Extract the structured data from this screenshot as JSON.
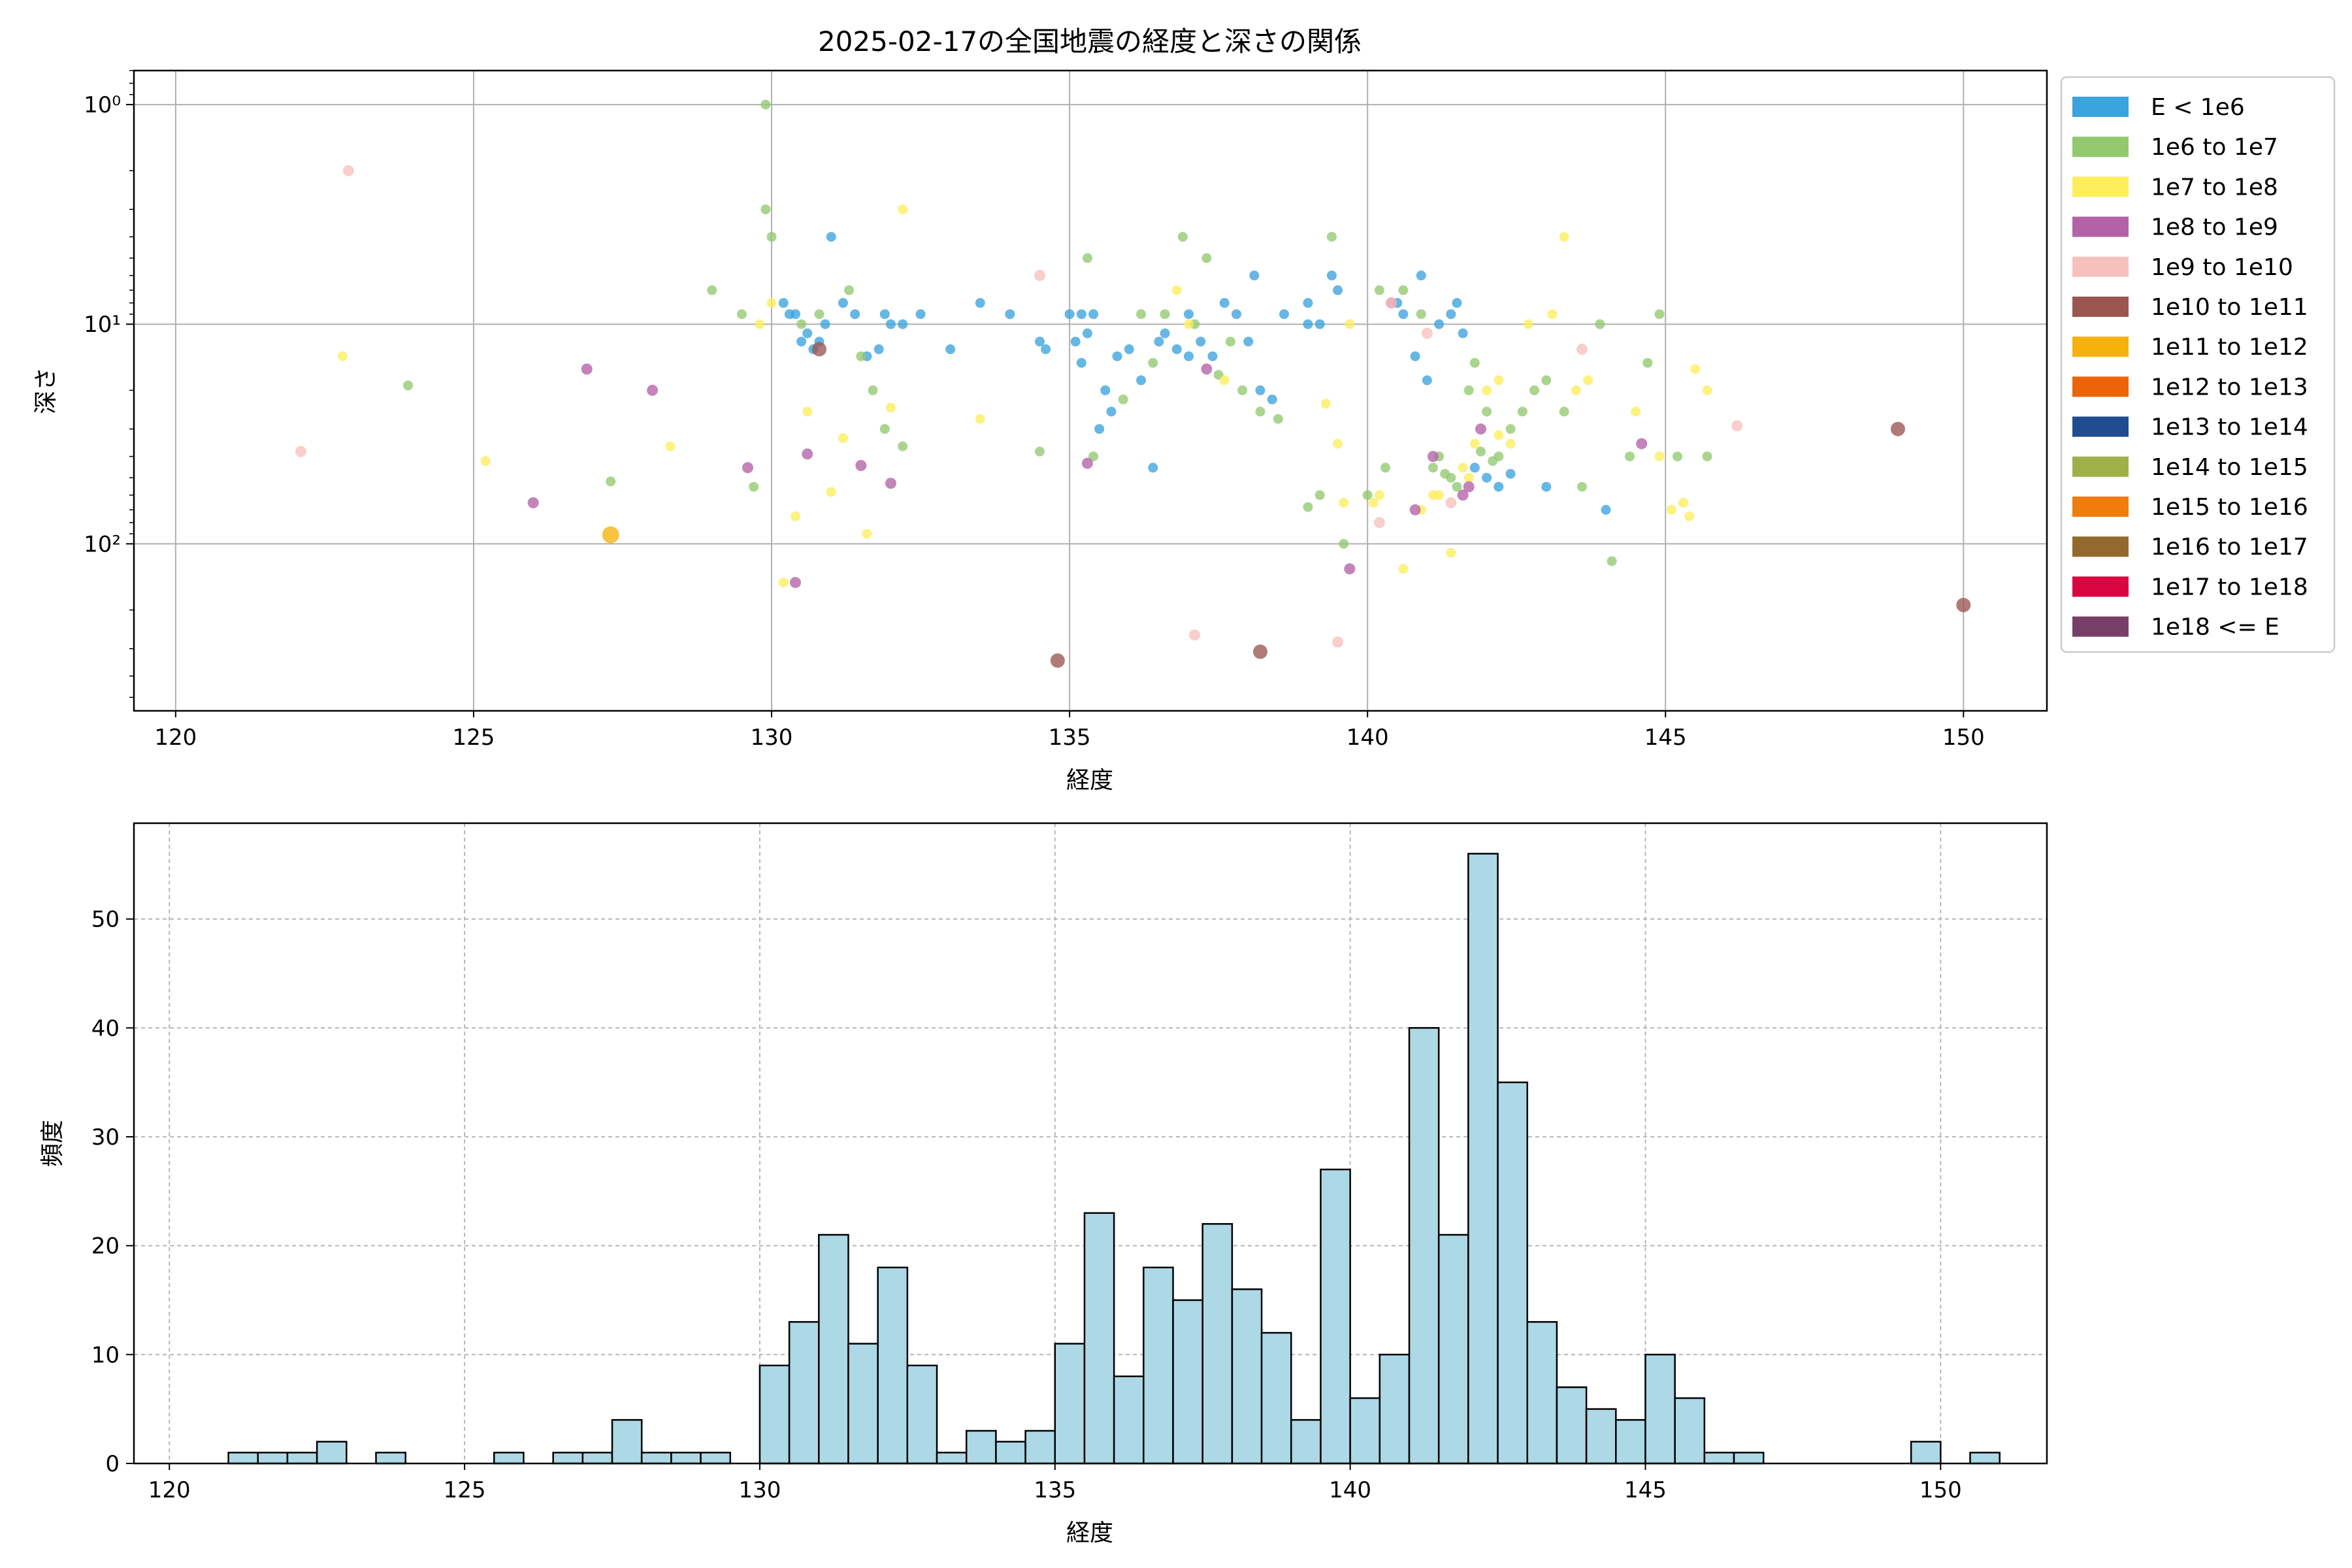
{
  "chart_data": [
    {
      "type": "scatter",
      "title": "2025-02-17の全国地震の経度と深さの関係",
      "xlabel": "経度",
      "ylabel": "深さ",
      "xlim": [
        119.3,
        151.4
      ],
      "ylim": [
        576,
        0.7
      ],
      "y_scale": "log-inverted",
      "x_ticks": [
        120,
        125,
        130,
        135,
        140,
        145,
        150
      ],
      "y_ticks": [
        {
          "value": 1,
          "label": "10⁰"
        },
        {
          "value": 10,
          "label": "10¹"
        },
        {
          "value": 100,
          "label": "10²"
        }
      ],
      "grid": true,
      "legend_position": "outside-right",
      "legend": [
        {
          "label": "E < 1e6",
          "color": "#3ba3dd"
        },
        {
          "label": "1e6 to 1e7",
          "color": "#92c96e"
        },
        {
          "label": "1e7 to 1e8",
          "color": "#fdee5c"
        },
        {
          "label": "1e8 to 1e9",
          "color": "#b462a8"
        },
        {
          "label": "1e9 to 1e10",
          "color": "#f6c1bd"
        },
        {
          "label": "1e10 to 1e11",
          "color": "#9a564f"
        },
        {
          "label": "1e11 to 1e12",
          "color": "#f5b20b"
        },
        {
          "label": "1e12 to 1e13",
          "color": "#ec6408"
        },
        {
          "label": "1e13 to 1e14",
          "color": "#1f4d90"
        },
        {
          "label": "1e14 to 1e15",
          "color": "#9fb04b"
        },
        {
          "label": "1e15 to 1e16",
          "color": "#ef7d0c"
        },
        {
          "label": "1e16 to 1e17",
          "color": "#936a2b"
        },
        {
          "label": "1e17 to 1e18",
          "color": "#d90541"
        },
        {
          "label": "1e18 <= E",
          "color": "#773e6a"
        }
      ],
      "series": [
        {
          "name": "E < 1e6",
          "points": [
            [
              130.2,
              8
            ],
            [
              130.4,
              9
            ],
            [
              130.5,
              12
            ],
            [
              130.6,
              11
            ],
            [
              130.7,
              13
            ],
            [
              130.8,
              12
            ],
            [
              130.9,
              10
            ],
            [
              131.0,
              4
            ],
            [
              131.2,
              8
            ],
            [
              131.4,
              9
            ],
            [
              131.6,
              14
            ],
            [
              131.8,
              13
            ],
            [
              132.0,
              10
            ],
            [
              132.5,
              9
            ],
            [
              133.0,
              13
            ],
            [
              133.5,
              8
            ],
            [
              134.0,
              9
            ],
            [
              134.5,
              12
            ],
            [
              134.6,
              13
            ],
            [
              135.0,
              9
            ],
            [
              135.1,
              12
            ],
            [
              135.2,
              15
            ],
            [
              135.3,
              11
            ],
            [
              135.4,
              9
            ],
            [
              135.5,
              30
            ],
            [
              135.6,
              20
            ],
            [
              135.7,
              25
            ],
            [
              135.8,
              14
            ],
            [
              136.0,
              13
            ],
            [
              136.2,
              18
            ],
            [
              136.4,
              45
            ],
            [
              136.5,
              12
            ],
            [
              136.6,
              11
            ],
            [
              136.8,
              13
            ],
            [
              137.0,
              9
            ],
            [
              137.2,
              12
            ],
            [
              137.4,
              14
            ],
            [
              137.6,
              8
            ],
            [
              137.8,
              9
            ],
            [
              138.0,
              12
            ],
            [
              138.2,
              20
            ],
            [
              138.4,
              22
            ],
            [
              138.6,
              9
            ],
            [
              139.0,
              8
            ],
            [
              139.2,
              10
            ],
            [
              139.4,
              6
            ],
            [
              139.5,
              7
            ],
            [
              140.5,
              8
            ],
            [
              140.6,
              9
            ],
            [
              140.8,
              14
            ],
            [
              141.0,
              18
            ],
            [
              141.2,
              10
            ],
            [
              141.4,
              9
            ],
            [
              141.6,
              11
            ],
            [
              141.8,
              45
            ],
            [
              142.0,
              50
            ],
            [
              142.2,
              55
            ],
            [
              142.4,
              48
            ],
            [
              143.0,
              55
            ],
            [
              144.0,
              70
            ],
            [
              132.2,
              10
            ],
            [
              131.9,
              9
            ],
            [
              130.3,
              9
            ],
            [
              135.2,
              9
            ],
            [
              137.0,
              14
            ],
            [
              138.1,
              6
            ],
            [
              140.9,
              6
            ],
            [
              141.5,
              8
            ],
            [
              139.0,
              10
            ]
          ]
        },
        {
          "name": "1e6 to 1e7",
          "points": [
            [
              123.9,
              19
            ],
            [
              127.3,
              52
            ],
            [
              129.0,
              7
            ],
            [
              129.5,
              9
            ],
            [
              129.9,
              1
            ],
            [
              129.9,
              3
            ],
            [
              130.0,
              4
            ],
            [
              130.5,
              10
            ],
            [
              130.8,
              9
            ],
            [
              131.3,
              7
            ],
            [
              131.5,
              14
            ],
            [
              131.7,
              20
            ],
            [
              131.9,
              30
            ],
            [
              132.2,
              36
            ],
            [
              134.5,
              38
            ],
            [
              135.3,
              5
            ],
            [
              135.4,
              40
            ],
            [
              135.9,
              22
            ],
            [
              136.2,
              9
            ],
            [
              136.4,
              15
            ],
            [
              136.6,
              9
            ],
            [
              136.9,
              4
            ],
            [
              137.1,
              10
            ],
            [
              137.3,
              5
            ],
            [
              137.5,
              17
            ],
            [
              137.7,
              12
            ],
            [
              137.9,
              20
            ],
            [
              138.2,
              25
            ],
            [
              138.5,
              27
            ],
            [
              139.0,
              68
            ],
            [
              139.2,
              60
            ],
            [
              139.4,
              4
            ],
            [
              139.6,
              100
            ],
            [
              140.0,
              60
            ],
            [
              140.3,
              45
            ],
            [
              140.6,
              7
            ],
            [
              140.9,
              9
            ],
            [
              141.2,
              40
            ],
            [
              141.4,
              50
            ],
            [
              141.5,
              55
            ],
            [
              141.7,
              20
            ],
            [
              141.8,
              15
            ],
            [
              142.0,
              25
            ],
            [
              142.2,
              40
            ],
            [
              142.4,
              30
            ],
            [
              142.6,
              25
            ],
            [
              142.8,
              20
            ],
            [
              143.0,
              18
            ],
            [
              143.3,
              25
            ],
            [
              143.6,
              55
            ],
            [
              143.9,
              10
            ],
            [
              144.1,
              120
            ],
            [
              144.4,
              40
            ],
            [
              144.7,
              15
            ],
            [
              144.9,
              9
            ],
            [
              145.2,
              40
            ],
            [
              145.7,
              40
            ],
            [
              141.1,
              45
            ],
            [
              141.3,
              48
            ],
            [
              141.9,
              38
            ],
            [
              142.1,
              42
            ],
            [
              140.2,
              7
            ],
            [
              129.7,
              55
            ]
          ]
        },
        {
          "name": "1e7 to 1e8",
          "points": [
            [
              122.8,
              14
            ],
            [
              125.2,
              42
            ],
            [
              128.3,
              36
            ],
            [
              129.8,
              10
            ],
            [
              130.0,
              8
            ],
            [
              130.2,
              150
            ],
            [
              130.4,
              75
            ],
            [
              130.6,
              25
            ],
            [
              131.0,
              58
            ],
            [
              131.2,
              33
            ],
            [
              131.6,
              90
            ],
            [
              132.0,
              24
            ],
            [
              132.2,
              3
            ],
            [
              133.5,
              27
            ],
            [
              136.8,
              7
            ],
            [
              137.0,
              10
            ],
            [
              137.6,
              18
            ],
            [
              139.3,
              23
            ],
            [
              139.5,
              35
            ],
            [
              139.6,
              65
            ],
            [
              140.2,
              60
            ],
            [
              140.6,
              130
            ],
            [
              140.9,
              70
            ],
            [
              141.2,
              60
            ],
            [
              141.4,
              110
            ],
            [
              141.6,
              45
            ],
            [
              141.8,
              35
            ],
            [
              142.0,
              20
            ],
            [
              142.2,
              18
            ],
            [
              142.4,
              35
            ],
            [
              142.7,
              10
            ],
            [
              143.1,
              9
            ],
            [
              143.3,
              4
            ],
            [
              143.5,
              20
            ],
            [
              143.7,
              18
            ],
            [
              144.5,
              25
            ],
            [
              144.9,
              40
            ],
            [
              145.1,
              70
            ],
            [
              145.3,
              65
            ],
            [
              145.4,
              75
            ],
            [
              145.5,
              16
            ],
            [
              145.7,
              20
            ],
            [
              139.7,
              10
            ],
            [
              141.1,
              60
            ],
            [
              141.7,
              50
            ],
            [
              140.1,
              65
            ],
            [
              142.2,
              32
            ]
          ]
        },
        {
          "name": "1e8 to 1e9",
          "points": [
            [
              126.0,
              65
            ],
            [
              126.9,
              16
            ],
            [
              128.0,
              20
            ],
            [
              129.6,
              45
            ],
            [
              130.4,
              150
            ],
            [
              130.6,
              39
            ],
            [
              131.5,
              44
            ],
            [
              132.0,
              53
            ],
            [
              135.3,
              43
            ],
            [
              137.3,
              16
            ],
            [
              140.4,
              8
            ],
            [
              140.8,
              70
            ],
            [
              141.1,
              40
            ],
            [
              141.7,
              55
            ],
            [
              141.9,
              30
            ],
            [
              144.6,
              35
            ],
            [
              139.7,
              130
            ],
            [
              141.6,
              60
            ]
          ]
        },
        {
          "name": "1e9 to 1e10",
          "points": [
            [
              122.1,
              38
            ],
            [
              122.9,
              2
            ],
            [
              134.5,
              6
            ],
            [
              137.1,
              260
            ],
            [
              139.5,
              280
            ],
            [
              140.4,
              8
            ],
            [
              141.0,
              11
            ],
            [
              143.6,
              13
            ],
            [
              146.2,
              29
            ],
            [
              140.2,
              80
            ],
            [
              141.4,
              65
            ]
          ]
        },
        {
          "name": "1e10 to 1e11",
          "points": [
            [
              130.8,
              13
            ],
            [
              134.8,
              340
            ],
            [
              138.2,
              310
            ],
            [
              148.9,
              30
            ],
            [
              150.0,
              190
            ]
          ]
        },
        {
          "name": "1e11 to 1e12",
          "points": [
            [
              127.3,
              91
            ]
          ]
        }
      ]
    },
    {
      "type": "bar",
      "title": "",
      "xlabel": "経度",
      "ylabel": "頻度",
      "xlim": [
        119.4,
        151.8
      ],
      "ylim": [
        0,
        58.8
      ],
      "x_ticks": [
        120,
        125,
        130,
        135,
        140,
        145,
        150
      ],
      "y_ticks": [
        0,
        10,
        20,
        30,
        40,
        50
      ],
      "grid": true,
      "bar_color": "#add8e6",
      "bin_start": 121.0,
      "bin_width": 0.5,
      "values": [
        1,
        1,
        1,
        2,
        0,
        1,
        0,
        0,
        0,
        1,
        0,
        1,
        1,
        4,
        1,
        1,
        1,
        0,
        9,
        13,
        21,
        11,
        18,
        9,
        1,
        3,
        2,
        3,
        11,
        23,
        8,
        18,
        15,
        22,
        16,
        12,
        4,
        27,
        6,
        10,
        40,
        21,
        56,
        35,
        13,
        7,
        5,
        4,
        10,
        6,
        1,
        1,
        0,
        0,
        0,
        0,
        0,
        2,
        0,
        1
      ]
    }
  ]
}
